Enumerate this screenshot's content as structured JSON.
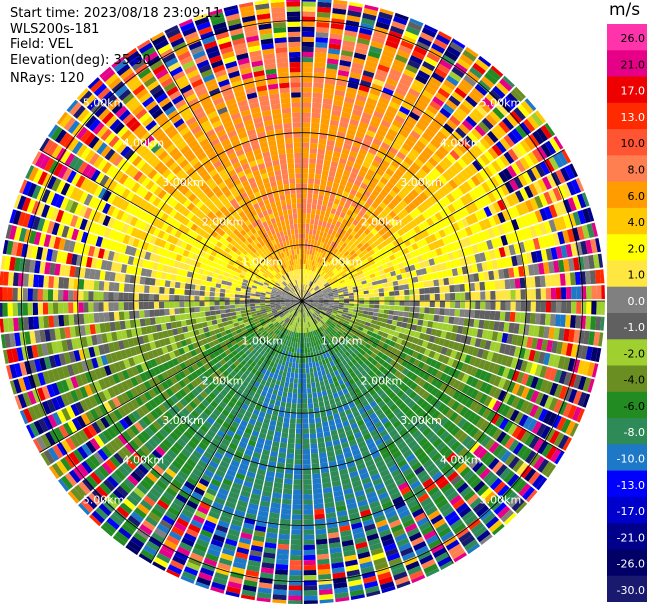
{
  "header": {
    "start_time": "Start time: 2023/08/18 23:09:11",
    "instrument": "WLS200s-181",
    "field": "Field: VEL",
    "elevation": "Elevation(deg): 35.30",
    "nrays": "NRays: 120"
  },
  "colorbar": {
    "unit": "m/s",
    "ticks": [
      "26.0",
      "21.0",
      "17.0",
      "13.0",
      "10.0",
      "8.0",
      "6.0",
      "4.0",
      "2.0",
      "1.0",
      "0.0",
      "-1.0",
      "-2.0",
      "-4.0",
      "-6.0",
      "-8.0",
      "-10.0",
      "-13.0",
      "-17.0",
      "-21.0",
      "-26.0",
      "-30.0"
    ],
    "colors": [
      "#ff33aa",
      "#e60088",
      "#ee0000",
      "#ff2a00",
      "#ff5533",
      "#ff7f50",
      "#ff9c00",
      "#ffc800",
      "#ffff00",
      "#ffe640",
      "#808080",
      "#606060",
      "#a0d030",
      "#6b8e23",
      "#228b22",
      "#2e8b57",
      "#1e78c8",
      "#0000ff",
      "#0000cd",
      "#00008b",
      "#000066",
      "#191970"
    ]
  },
  "chart_data": {
    "type": "ppi",
    "field": "VEL",
    "unit": "m/s",
    "nrays": 120,
    "elevation_deg": 35.3,
    "range_ring_labels": [
      "1.00km",
      "2.00km",
      "3.00km",
      "4.00km",
      "5.00km"
    ],
    "ring_label_bearings_deg": [
      315,
      45,
      135,
      225
    ],
    "max_range_km": 5.4,
    "velocity_pattern": {
      "approaching_sector_center_deg": 180,
      "receding_sector_center_deg": 0,
      "near_zero_zone_km": 0.6,
      "noise_beyond_km": 3.6
    }
  }
}
